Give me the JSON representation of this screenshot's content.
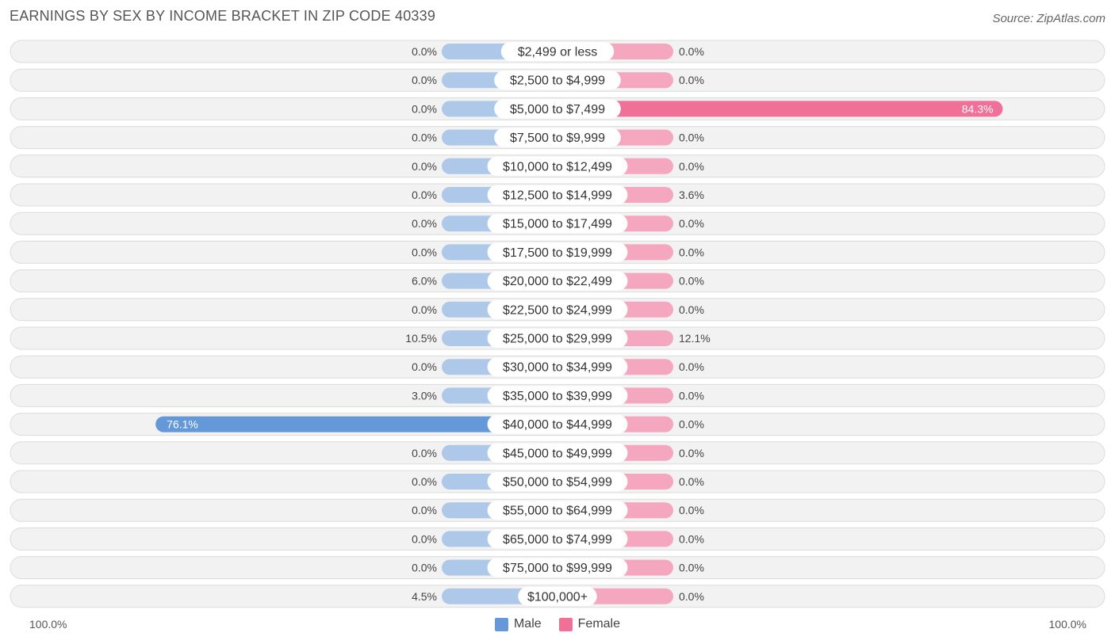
{
  "header": {
    "title": "EARNINGS BY SEX BY INCOME BRACKET IN ZIP CODE 40339",
    "source": "Source: ZipAtlas.com"
  },
  "axis": {
    "left_label": "100.0%",
    "right_label": "100.0%"
  },
  "legend": {
    "male_label": "Male",
    "female_label": "Female"
  },
  "colors": {
    "male_light": "#aec8ea",
    "male_strong": "#6498d8",
    "female_light": "#f5a7c0",
    "female_strong": "#f07098",
    "row_bg": "#f2f2f2",
    "row_border": "#dcdcdc"
  },
  "chart_data": {
    "type": "bar",
    "orientation": "horizontal-diverging",
    "title": "EARNINGS BY SEX BY INCOME BRACKET IN ZIP CODE 40339",
    "xlim": [
      -100,
      100
    ],
    "categories": [
      "$2,499 or less",
      "$2,500 to $4,999",
      "$5,000 to $7,499",
      "$7,500 to $9,999",
      "$10,000 to $12,499",
      "$12,500 to $14,999",
      "$15,000 to $17,499",
      "$17,500 to $19,999",
      "$20,000 to $22,499",
      "$22,500 to $24,999",
      "$25,000 to $29,999",
      "$30,000 to $34,999",
      "$35,000 to $39,999",
      "$40,000 to $44,999",
      "$45,000 to $49,999",
      "$50,000 to $54,999",
      "$55,000 to $64,999",
      "$65,000 to $74,999",
      "$75,000 to $99,999",
      "$100,000+"
    ],
    "series": [
      {
        "name": "Male",
        "values": [
          0.0,
          0.0,
          0.0,
          0.0,
          0.0,
          0.0,
          0.0,
          0.0,
          6.0,
          0.0,
          10.5,
          0.0,
          3.0,
          76.1,
          0.0,
          0.0,
          0.0,
          0.0,
          0.0,
          4.5
        ],
        "labels": [
          "0.0%",
          "0.0%",
          "0.0%",
          "0.0%",
          "0.0%",
          "0.0%",
          "0.0%",
          "0.0%",
          "6.0%",
          "0.0%",
          "10.5%",
          "0.0%",
          "3.0%",
          "76.1%",
          "0.0%",
          "0.0%",
          "0.0%",
          "0.0%",
          "0.0%",
          "4.5%"
        ]
      },
      {
        "name": "Female",
        "values": [
          0.0,
          0.0,
          84.3,
          0.0,
          0.0,
          3.6,
          0.0,
          0.0,
          0.0,
          0.0,
          12.1,
          0.0,
          0.0,
          0.0,
          0.0,
          0.0,
          0.0,
          0.0,
          0.0,
          0.0
        ],
        "labels": [
          "0.0%",
          "0.0%",
          "84.3%",
          "0.0%",
          "0.0%",
          "3.6%",
          "0.0%",
          "0.0%",
          "0.0%",
          "0.0%",
          "12.1%",
          "0.0%",
          "0.0%",
          "0.0%",
          "0.0%",
          "0.0%",
          "0.0%",
          "0.0%",
          "0.0%",
          "0.0%"
        ]
      }
    ],
    "legend_position": "bottom-center",
    "grid": false
  }
}
